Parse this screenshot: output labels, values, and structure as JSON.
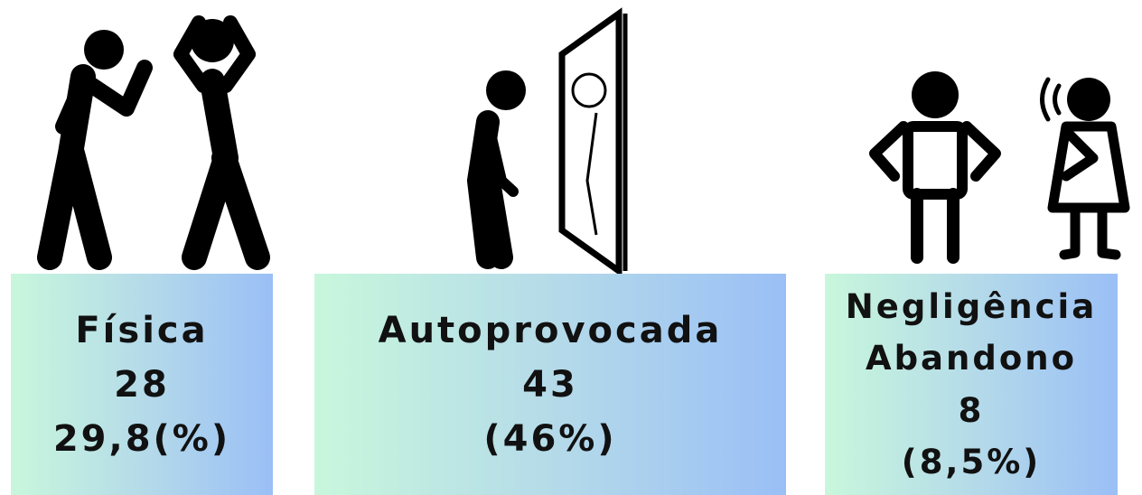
{
  "cards": [
    {
      "lines": [
        "Física",
        "28",
        "29,8(%)"
      ]
    },
    {
      "lines": [
        "Autoprovocada",
        "43",
        "(46%)"
      ]
    },
    {
      "lines": [
        "Negligência",
        "Abandono",
        "8",
        "(8,5%)"
      ]
    }
  ]
}
